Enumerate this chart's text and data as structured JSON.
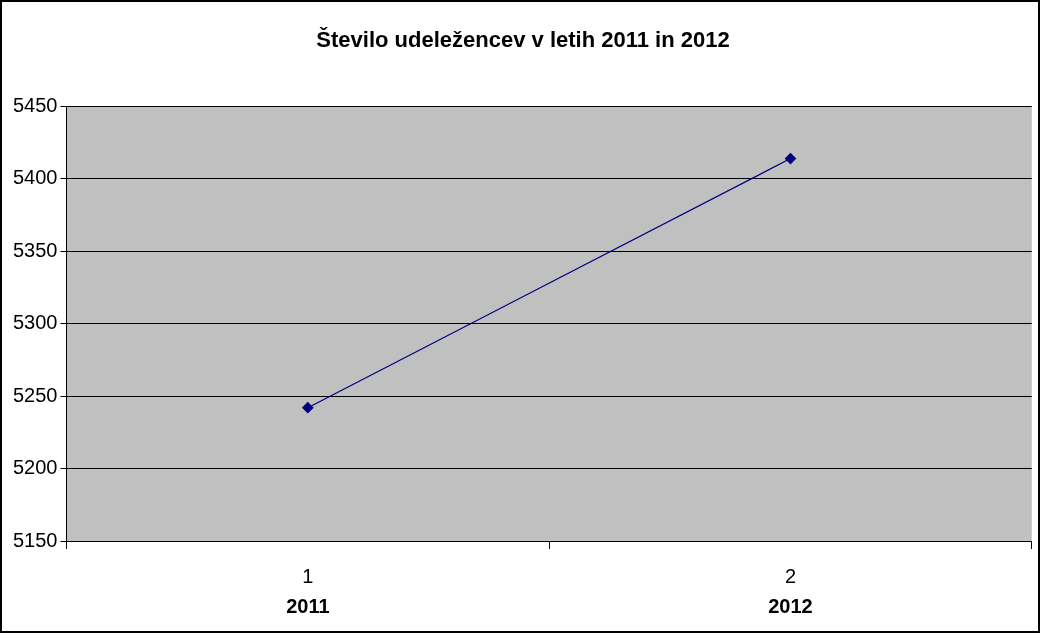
{
  "chart_data": {
    "type": "line",
    "title": "Število udeležencev v letih 2011 in 2012",
    "categories": [
      "1",
      "2"
    ],
    "series": [
      {
        "color": "#000080",
        "values": [
          5242,
          5414
        ]
      }
    ],
    "ylim": [
      5150,
      5450
    ],
    "yticks": [
      5150,
      5200,
      5250,
      5300,
      5350,
      5400,
      5450
    ],
    "grid": "y",
    "legend": false,
    "marker": "diamond",
    "line_style": "solid",
    "annotations": [
      "2011",
      "2012"
    ]
  }
}
